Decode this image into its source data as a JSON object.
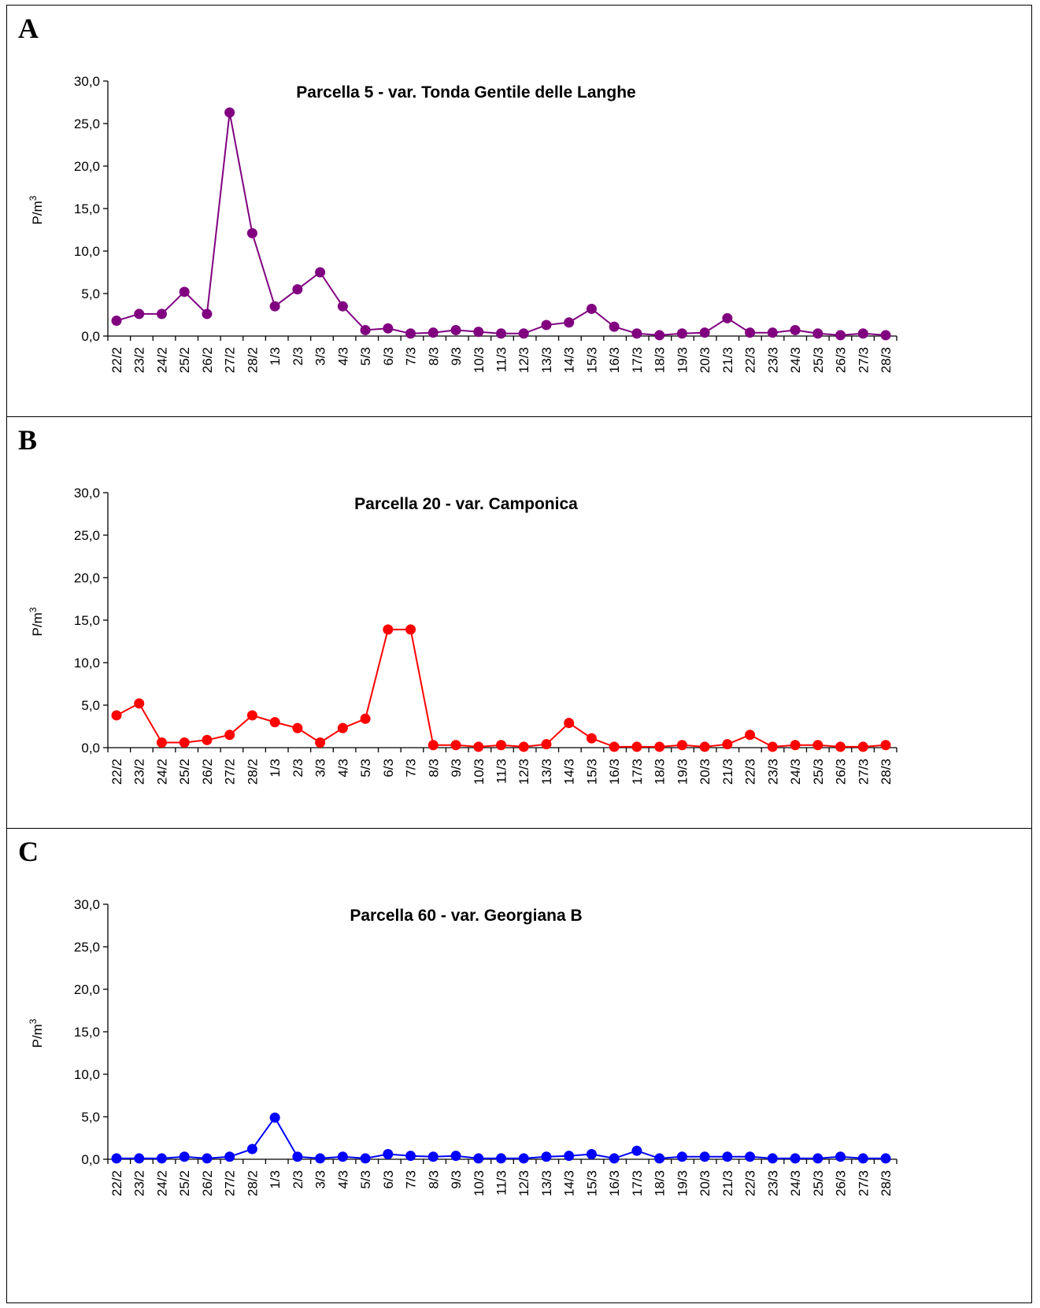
{
  "figure": {
    "panels": [
      {
        "letter": "A"
      },
      {
        "letter": "B"
      },
      {
        "letter": "C"
      }
    ]
  },
  "chart_data": [
    {
      "type": "line",
      "panel": "A",
      "title": "Parcella 5 - var. Tonda Gentile delle Langhe",
      "ylabel": "P/m",
      "ylabel_superscript": "3",
      "xlabel": "",
      "ylim": [
        0,
        30
      ],
      "yticks": [
        "0,0",
        "5,0",
        "10,0",
        "15,0",
        "20,0",
        "25,0",
        "30,0"
      ],
      "grid": false,
      "color": "#800080",
      "categories": [
        "22/2",
        "23/2",
        "24/2",
        "25/2",
        "26/2",
        "27/2",
        "28/2",
        "1/3",
        "2/3",
        "3/3",
        "4/3",
        "5/3",
        "6/3",
        "7/3",
        "8/3",
        "9/3",
        "10/3",
        "11/3",
        "12/3",
        "13/3",
        "14/3",
        "15/3",
        "16/3",
        "17/3",
        "18/3",
        "19/3",
        "20/3",
        "21/3",
        "22/3",
        "23/3",
        "24/3",
        "25/3",
        "26/3",
        "27/3",
        "28/3"
      ],
      "values": [
        1.8,
        2.6,
        2.6,
        5.2,
        2.6,
        26.3,
        12.1,
        3.5,
        5.5,
        7.5,
        3.5,
        0.7,
        0.9,
        0.3,
        0.4,
        0.7,
        0.5,
        0.3,
        0.3,
        1.3,
        1.6,
        3.2,
        1.1,
        0.3,
        0.1,
        0.3,
        0.4,
        2.1,
        0.4,
        0.4,
        0.7,
        0.3,
        0.1,
        0.3,
        0.1
      ]
    },
    {
      "type": "line",
      "panel": "B",
      "title": "Parcella 20 - var. Camponica",
      "ylabel": "P/m",
      "ylabel_superscript": "3",
      "xlabel": "",
      "ylim": [
        0,
        30
      ],
      "yticks": [
        "0,0",
        "5,0",
        "10,0",
        "15,0",
        "20,0",
        "25,0",
        "30,0"
      ],
      "grid": false,
      "color": "#ff0000",
      "categories": [
        "22/2",
        "23/2",
        "24/2",
        "25/2",
        "26/2",
        "27/2",
        "28/2",
        "1/3",
        "2/3",
        "3/3",
        "4/3",
        "5/3",
        "6/3",
        "7/3",
        "8/3",
        "9/3",
        "10/3",
        "11/3",
        "12/3",
        "13/3",
        "14/3",
        "15/3",
        "16/3",
        "17/3",
        "18/3",
        "19/3",
        "20/3",
        "21/3",
        "22/3",
        "23/3",
        "24/3",
        "25/3",
        "26/3",
        "27/3",
        "28/3"
      ],
      "values": [
        3.8,
        5.2,
        0.6,
        0.6,
        0.9,
        1.5,
        3.8,
        3.0,
        2.3,
        0.6,
        2.3,
        3.4,
        13.9,
        13.9,
        0.3,
        0.3,
        0.1,
        0.3,
        0.1,
        0.4,
        2.9,
        1.1,
        0.1,
        0.1,
        0.1,
        0.3,
        0.1,
        0.4,
        1.5,
        0.1,
        0.3,
        0.3,
        0.1,
        0.1,
        0.3
      ]
    },
    {
      "type": "line",
      "panel": "C",
      "title": "Parcella 60 - var. Georgiana B",
      "ylabel": "P/m",
      "ylabel_superscript": "3",
      "xlabel": "",
      "ylim": [
        0,
        30
      ],
      "yticks": [
        "0,0",
        "5,0",
        "10,0",
        "15,0",
        "20,0",
        "25,0",
        "30,0"
      ],
      "grid": false,
      "color": "#0000ff",
      "categories": [
        "22/2",
        "23/2",
        "24/2",
        "25/2",
        "26/2",
        "27/2",
        "28/2",
        "1/3",
        "2/3",
        "3/3",
        "4/3",
        "5/3",
        "6/3",
        "7/3",
        "8/3",
        "9/3",
        "10/3",
        "11/3",
        "12/3",
        "13/3",
        "14/3",
        "15/3",
        "16/3",
        "17/3",
        "18/3",
        "19/3",
        "20/3",
        "21/3",
        "22/3",
        "23/3",
        "24/3",
        "25/3",
        "26/3",
        "27/3",
        "28/3"
      ],
      "values": [
        0.1,
        0.1,
        0.1,
        0.3,
        0.1,
        0.3,
        1.2,
        4.9,
        0.3,
        0.1,
        0.3,
        0.1,
        0.6,
        0.4,
        0.3,
        0.4,
        0.1,
        0.1,
        0.1,
        0.3,
        0.4,
        0.6,
        0.1,
        1.0,
        0.1,
        0.3,
        0.3,
        0.3,
        0.3,
        0.1,
        0.1,
        0.1,
        0.3,
        0.1,
        0.1
      ]
    }
  ]
}
